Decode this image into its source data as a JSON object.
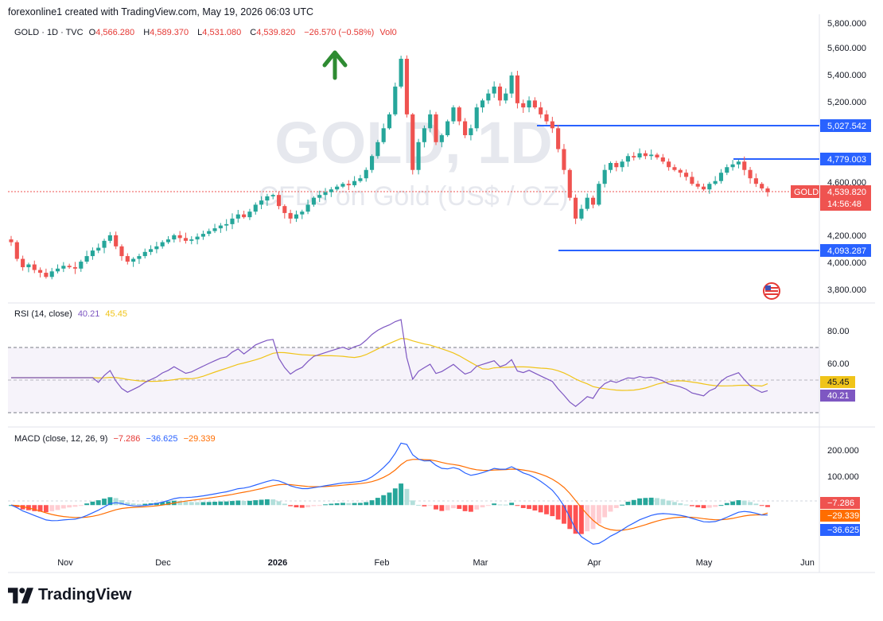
{
  "header": {
    "text": "forexonline1 created with TradingView.com, May 19, 2026 06:03 UTC"
  },
  "legend": {
    "symbol": "GOLD · 1D · TVC",
    "o": "4,566.280",
    "h": "4,589.370",
    "l": "4,531.080",
    "c": "4,539.820",
    "change": "−26.570 (−0.58%)",
    "vol": "Vol0"
  },
  "watermark": {
    "title": "GOLD, 1D",
    "subtitle": "CFDs on Gold (US$ / OZ)"
  },
  "levels": [
    "5,027.542",
    "4,779.003",
    "4,093.287"
  ],
  "price_labels": {
    "symbol": "GOLD",
    "last": "4,539.820",
    "countdown": "14:56:48"
  },
  "rsi_legend": {
    "name": "RSI (14, close)",
    "rsi": "40.21",
    "ma": "45.45"
  },
  "macd_legend": {
    "name": "MACD (close, 12, 26, 9)",
    "hist": "−7.286",
    "macd": "−36.625",
    "signal": "−29.339"
  },
  "footer": {
    "brand": "TradingView"
  },
  "colors": {
    "up": "#26a69a",
    "down": "#ef5350",
    "level": "#2962ff",
    "rsi": "#7e57c2",
    "rsi_ma": "#f0c419",
    "signal": "#ff6d00"
  },
  "chart_data": [
    {
      "type": "candlestick",
      "title": "GOLD · 1D · TVC",
      "x_tick_labels": [
        "Nov",
        "Dec",
        "2026",
        "Feb",
        "Mar",
        "Apr",
        "May",
        "Jun"
      ],
      "y_tick_labels": [
        "5,800.000",
        "5,600.000",
        "5,400.000",
        "5,200.000",
        "4,600.000",
        "4,200.000",
        "4,000.000",
        "3,800.000"
      ],
      "ylim": [
        3760,
        5820
      ],
      "horizontal_levels": [
        5027.542,
        4779.003,
        4093.287
      ],
      "last_price": 4539.82,
      "close": [
        4180,
        4060,
        4000,
        4020,
        3980,
        3960,
        3930,
        3970,
        3990,
        4010,
        4000,
        3990,
        4040,
        4080,
        4120,
        4140,
        4190,
        4230,
        4150,
        4080,
        4040,
        4060,
        4080,
        4110,
        4130,
        4150,
        4180,
        4200,
        4230,
        4210,
        4190,
        4200,
        4220,
        4240,
        4260,
        4280,
        4300,
        4310,
        4350,
        4380,
        4360,
        4400,
        4450,
        4480,
        4510,
        4520,
        4440,
        4390,
        4350,
        4380,
        4400,
        4450,
        4500,
        4520,
        4540,
        4560,
        4580,
        4600,
        4590,
        4620,
        4640,
        4700,
        4800,
        4900,
        5000,
        5100,
        5300,
        5500,
        5100,
        4700,
        4900,
        5000,
        5100,
        4900,
        4950,
        5050,
        5150,
        5050,
        4950,
        5000,
        5150,
        5200,
        5250,
        5300,
        5200,
        5250,
        5380,
        5180,
        5150,
        5200,
        5150,
        5100,
        5050,
        5000,
        4850,
        4700,
        4500,
        4350,
        4420,
        4500,
        4450,
        4600,
        4700,
        4750,
        4720,
        4760,
        4800,
        4790,
        4820,
        4800,
        4810,
        4790,
        4760,
        4720,
        4700,
        4680,
        4650,
        4600,
        4580,
        4560,
        4600,
        4620,
        4680,
        4720,
        4740,
        4760,
        4700,
        4640,
        4600,
        4567,
        4540
      ],
      "rsi": {
        "name": "RSI (14, close)",
        "last": 40.21,
        "ma_last": 45.45,
        "levels": [
          70,
          50,
          30
        ],
        "y_tick_labels": [
          "80.00",
          "60.00"
        ],
        "ylim": [
          20,
          95
        ]
      },
      "macd": {
        "name": "MACD (close, 12, 26, 9)",
        "last_hist": -7.286,
        "last_macd": -36.625,
        "last_signal": -29.339,
        "y_tick_labels": [
          "200.000",
          "100.000"
        ],
        "ylim": [
          -190,
          250
        ]
      }
    }
  ]
}
